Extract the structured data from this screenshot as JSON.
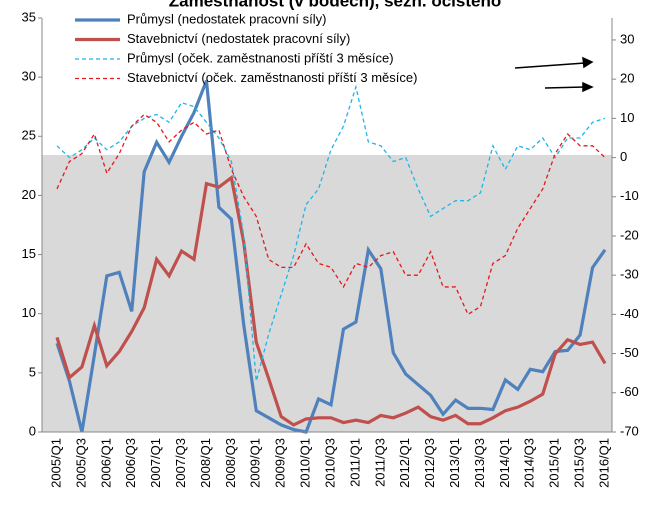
{
  "chart_data": {
    "type": "line",
    "title": "Zaměstnanost (v bodech), sezn. očištěno",
    "categories": [
      "2005/Q1",
      null,
      "2005/Q3",
      null,
      "2006/Q1",
      null,
      "2006/Q3",
      null,
      "2007/Q1",
      null,
      "2007/Q3",
      null,
      "2008/Q1",
      null,
      "2008/Q3",
      null,
      "2009/Q1",
      null,
      "2009/Q3",
      null,
      "2010/Q1",
      null,
      "2010/Q3",
      null,
      "2011/Q1",
      null,
      "2011/Q3",
      null,
      "2012/Q1",
      null,
      "2012/Q3",
      null,
      "2013/Q1",
      null,
      "2013/Q3",
      null,
      "2014/Q1",
      null,
      "2014/Q3",
      null,
      "2015/Q1",
      null,
      "2015/Q3",
      null,
      "2016/Q1"
    ],
    "series": [
      {
        "name": "Průmysl (nedostatek pracovní síly)",
        "color": "#4f81bd",
        "dash": "solid",
        "axis": "y",
        "values": [
          7.5,
          4.3,
          0,
          6.5,
          13.2,
          13.5,
          10.2,
          22,
          24.5,
          22.8,
          25,
          27,
          29.7,
          19,
          18,
          9,
          1.8,
          1.2,
          0.6,
          0.2,
          0,
          2.8,
          2.3,
          8.7,
          9.3,
          15.4,
          13.8,
          6.7,
          4.9,
          4,
          3.1,
          1.5,
          2.7,
          2,
          2,
          1.9,
          4.4,
          3.6,
          5.3,
          5.1,
          6.8,
          6.9,
          8.2,
          13.9,
          15.4
        ]
      },
      {
        "name": "Stavebnictví (nedostatek pracovní síly)",
        "color": "#c0504d",
        "dash": "solid",
        "axis": "y",
        "values": [
          8,
          4.6,
          5.5,
          9,
          5.6,
          6.8,
          8.5,
          10.5,
          14.6,
          13.2,
          15.3,
          14.6,
          21,
          20.7,
          21.5,
          16,
          7.6,
          4.5,
          1.3,
          0.6,
          1.1,
          1.2,
          1.2,
          0.8,
          1,
          0.8,
          1.4,
          1.2,
          1.6,
          2.1,
          1.3,
          1,
          1.4,
          0.7,
          0.7,
          1.2,
          1.8,
          2.1,
          2.6,
          3.2,
          6.6,
          7.8,
          7.4,
          7.6,
          5.8
        ]
      },
      {
        "name": "Průmysl (oček. zaměstnanosti příští 3 měsíce)",
        "color": "#1fb5e8",
        "dash": "dashed",
        "axis": "y2",
        "values": [
          3,
          0,
          2,
          5,
          2,
          4,
          8,
          10,
          11,
          9,
          14,
          13,
          9,
          5,
          -1,
          -20,
          -57,
          -45,
          -35,
          -25,
          -12,
          -8,
          2,
          8,
          18,
          4,
          3,
          -1,
          0,
          -8,
          -15,
          -13,
          -11,
          -11,
          -9,
          3,
          -3,
          3,
          2,
          5,
          0,
          5,
          5,
          9,
          10
        ]
      },
      {
        "name": "Stavebnictví (oček. zaměstnanosti příští 3 měsíce)",
        "color": "#e31a1c",
        "dash": "dashed",
        "axis": "y2",
        "values": [
          -8,
          -1,
          1,
          6,
          -4,
          1,
          8,
          11,
          9,
          4,
          7,
          9,
          6,
          7,
          -3,
          -10,
          -15,
          -26,
          -28,
          -28,
          -22,
          -27,
          -28,
          -33,
          -27,
          -28,
          -25,
          -24,
          -30,
          -30,
          -24,
          -33,
          -33,
          -40,
          -38,
          -27,
          -25,
          -18,
          -13,
          -8,
          1,
          6,
          3,
          3,
          0
        ]
      }
    ],
    "ylim": [
      0,
      35
    ],
    "yticks": [
      0,
      5,
      10,
      15,
      20,
      25,
      30,
      35
    ],
    "y2lim": [
      -70,
      35.6
    ],
    "y2ticks": [
      -70,
      -60,
      -50,
      -40,
      -30,
      -20,
      -10,
      0,
      10,
      20,
      30
    ]
  }
}
